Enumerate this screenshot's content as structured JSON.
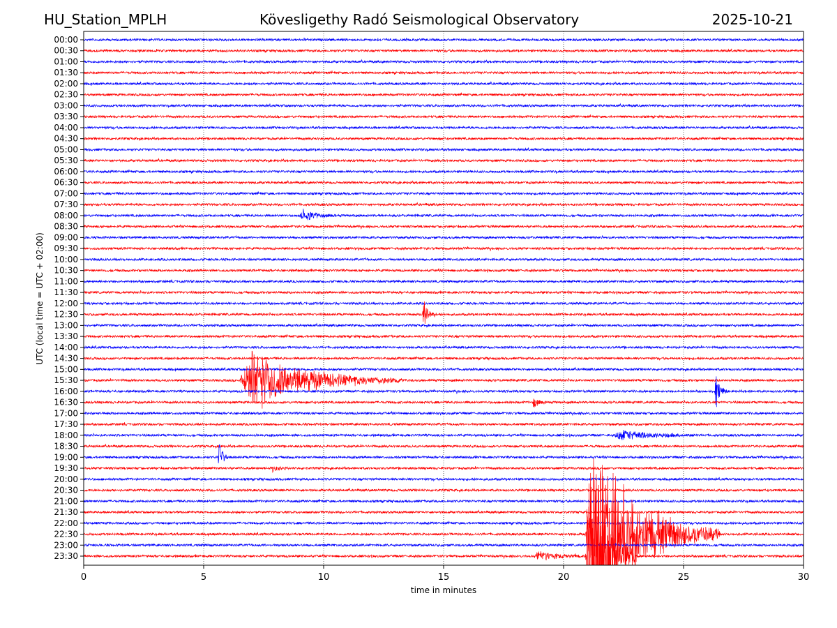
{
  "header": {
    "station": "HU_Station_MPLH",
    "observatory": "Kövesligethy Radó Seismological Observatory",
    "date": "2025-10-21"
  },
  "chart_data": {
    "type": "line",
    "title": "Kövesligethy Radó Seismological Observatory",
    "xlabel": "time in minutes",
    "ylabel": "UTC (local time = UTC + 02:00)",
    "xlim": [
      0,
      30
    ],
    "xticks": [
      "0",
      "5",
      "10",
      "15",
      "20",
      "25",
      "30"
    ],
    "grid": "vertical dotted at 5-minute intervals",
    "colors": [
      "#0000ff",
      "#ff0000"
    ],
    "rows": [
      "00:00",
      "00:30",
      "01:00",
      "01:30",
      "02:00",
      "02:30",
      "03:00",
      "03:30",
      "04:00",
      "04:30",
      "05:00",
      "05:30",
      "06:00",
      "06:30",
      "07:00",
      "07:30",
      "08:00",
      "08:30",
      "09:00",
      "09:30",
      "10:00",
      "10:30",
      "11:00",
      "11:30",
      "12:00",
      "12:30",
      "13:00",
      "13:30",
      "14:00",
      "14:30",
      "15:00",
      "15:30",
      "16:00",
      "16:30",
      "17:00",
      "17:30",
      "18:00",
      "18:30",
      "19:00",
      "19:30",
      "20:00",
      "20:30",
      "21:00",
      "21:30",
      "22:00",
      "22:30",
      "23:00",
      "23:30"
    ],
    "events": [
      {
        "row": "08:00",
        "start": 9.0,
        "end": 10.6,
        "amplitude": 10
      },
      {
        "row": "12:30",
        "start": 14.1,
        "end": 14.7,
        "amplitude": 30
      },
      {
        "row": "15:30",
        "start": 6.5,
        "end": 13.3,
        "amplitude": 50
      },
      {
        "row": "16:00",
        "start": 26.3,
        "end": 26.8,
        "amplitude": 30
      },
      {
        "row": "16:30",
        "start": 18.7,
        "end": 19.3,
        "amplitude": 10
      },
      {
        "row": "18:00",
        "start": 22.1,
        "end": 25.6,
        "amplitude": 9
      },
      {
        "row": "19:00",
        "start": 5.6,
        "end": 6.0,
        "amplitude": 35
      },
      {
        "row": "19:30",
        "start": 7.8,
        "end": 8.6,
        "amplitude": 5
      },
      {
        "row": "22:30",
        "start": 20.9,
        "end": 26.5,
        "amplitude": 150
      },
      {
        "row": "23:30",
        "start": 18.75,
        "end": 20.9,
        "amplitude": 8
      },
      {
        "row": "23:30",
        "start": 20.9,
        "end": 23.0,
        "amplitude": 200
      }
    ]
  }
}
